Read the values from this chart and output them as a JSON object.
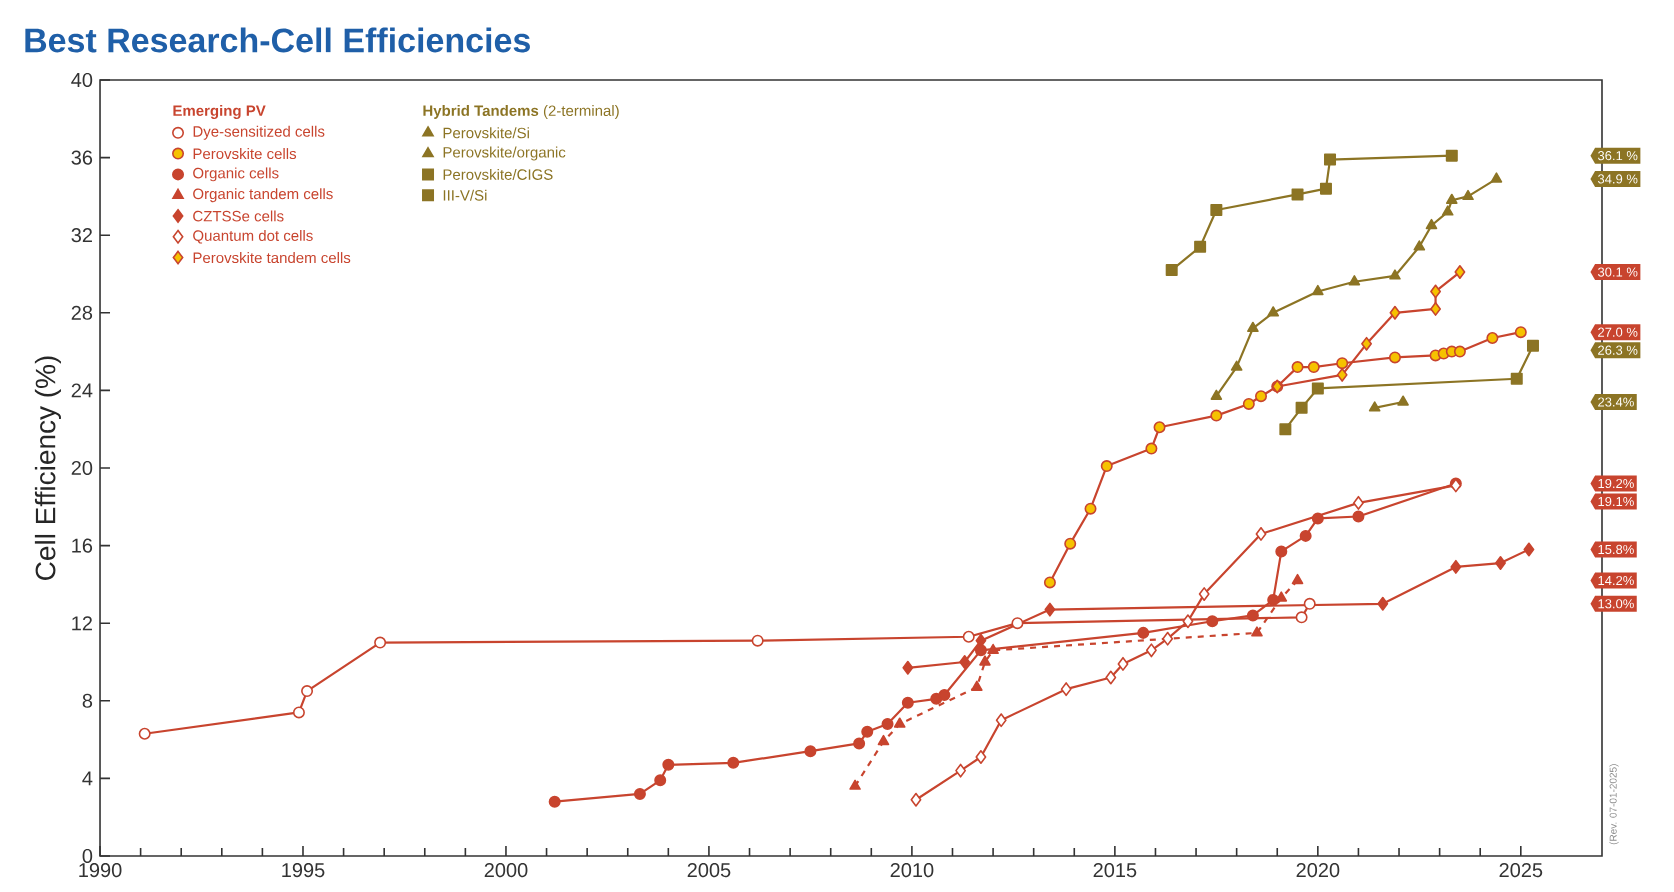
{
  "chart_data": {
    "type": "line",
    "title": "Best Research-Cell Efficiencies",
    "ylabel": "Cell Efficiency (%)",
    "xlim": [
      1990,
      2027
    ],
    "ylim": [
      0,
      40
    ],
    "xticks": [
      1990,
      1995,
      2000,
      2005,
      2010,
      2015,
      2020,
      2025
    ],
    "yticks": [
      0,
      4,
      8,
      12,
      16,
      20,
      24,
      28,
      32,
      36,
      40
    ],
    "legend": "top left",
    "series": [
      {
        "name": "Dye-sensitized cells",
        "color": "#c8442e",
        "marker": "circle",
        "colors": [
          "#ffffff",
          "#ffffff",
          "#ffffff",
          "#ffffff",
          "#ffffff",
          "#ffffff",
          "#ffffff",
          "#ffffff",
          "#ffffff"
        ],
        "x": [
          1991.1,
          1994.9,
          1995.1,
          1996.9,
          2006.2,
          2011.4,
          2012.6,
          2019.6,
          2019.8
        ],
        "values": [
          6.3,
          7.4,
          8.5,
          11.0,
          11.1,
          11.3,
          12.0,
          12.3,
          13.0
        ]
      },
      {
        "name": "Perovskite cells",
        "color": "#c8442e",
        "marker": "circle",
        "colors": [
          "#f6c200",
          "#f6c200",
          "#f6c200",
          "#f6c200",
          "#f6c200",
          "#f6c200",
          "#f6c200",
          "#f6c200",
          "#f6c200",
          "#f6c200",
          "#f6c200",
          "#f6c200",
          "#f6c200",
          "#f6c200",
          "#f6c200",
          "#f6c200",
          "#f6c200",
          "#f6c200",
          "#f6c200",
          "#f6c200"
        ],
        "x": [
          2013.4,
          2013.9,
          2014.4,
          2014.8,
          2015.9,
          2016.1,
          2017.5,
          2018.3,
          2018.6,
          2019.0,
          2019.5,
          2019.9,
          2020.6,
          2021.9,
          2022.9,
          2023.1,
          2023.3,
          2023.5,
          2024.3,
          2025.0
        ],
        "values": [
          14.1,
          16.1,
          17.9,
          20.1,
          21.0,
          22.1,
          22.7,
          23.3,
          23.7,
          24.2,
          25.2,
          25.2,
          25.4,
          25.7,
          25.8,
          25.9,
          26.0,
          26.0,
          26.7,
          27.0
        ]
      },
      {
        "name": "Organic cells",
        "color": "#c8442e",
        "marker": "circle",
        "x": [
          2001.2,
          2003.3,
          2003.8,
          2004.0,
          2005.6,
          2007.5,
          2008.7,
          2008.9,
          2009.4,
          2009.9,
          2010.6,
          2010.8,
          2011.7,
          2015.7,
          2017.4,
          2018.4,
          2018.9,
          2019.1,
          2019.7,
          2020.0,
          2021.0,
          2023.4
        ],
        "values": [
          2.8,
          3.2,
          3.9,
          4.7,
          4.8,
          5.4,
          5.8,
          6.4,
          6.8,
          7.9,
          8.1,
          8.3,
          10.6,
          11.5,
          12.1,
          12.4,
          13.2,
          15.7,
          16.5,
          17.4,
          17.5,
          19.2
        ]
      },
      {
        "name": "Organic tandem cells",
        "color": "#c8442e",
        "marker": "triangle",
        "line_style": "dashed",
        "x": [
          2008.6,
          2009.3,
          2009.7,
          2011.6,
          2011.8,
          2012.0,
          2018.5,
          2019.1,
          2019.5
        ],
        "values": [
          3.6,
          5.9,
          6.8,
          8.7,
          10.0,
          10.6,
          11.5,
          13.3,
          14.2
        ]
      },
      {
        "name": "CZTSSe cells",
        "color": "#c8442e",
        "marker": "diamond",
        "x": [
          2009.9,
          2011.3,
          2011.7,
          2013.4,
          2021.6,
          2023.4,
          2024.5,
          2025.2
        ],
        "values": [
          9.7,
          10.0,
          11.1,
          12.7,
          13.0,
          14.9,
          15.1,
          15.8
        ]
      },
      {
        "name": "Quantum dot cells",
        "color": "#c8442e",
        "marker": "diamond",
        "colors": [
          "#ffffff",
          "#ffffff",
          "#ffffff",
          "#ffffff",
          "#ffffff",
          "#ffffff",
          "#ffffff",
          "#ffffff",
          "#ffffff",
          "#ffffff",
          "#ffffff",
          "#ffffff",
          "#ffffff",
          "#ffffff"
        ],
        "x": [
          2010.1,
          2011.2,
          2011.7,
          2012.2,
          2013.8,
          2014.9,
          2015.2,
          2015.9,
          2016.3,
          2016.8,
          2017.2,
          2018.6,
          2021.0,
          2023.4
        ],
        "values": [
          2.9,
          4.4,
          5.1,
          7.0,
          8.6,
          9.2,
          9.9,
          10.6,
          11.2,
          12.1,
          13.5,
          16.6,
          18.2,
          19.1
        ]
      },
      {
        "name": "Perovskite tandem cells",
        "color": "#c8442e",
        "marker": "diamond",
        "colors": [
          "#f6c200",
          "#f6c200",
          "#f6c200",
          "#f6c200",
          "#f6c200",
          "#f6c200",
          "#f6c200"
        ],
        "x": [
          2019.0,
          2020.6,
          2021.2,
          2021.9,
          2022.9,
          2022.9,
          2023.5
        ],
        "values": [
          24.2,
          24.8,
          26.4,
          28.0,
          28.2,
          29.1,
          30.1
        ]
      },
      {
        "name": "Perovskite/Si",
        "color": "#8c7424",
        "marker": "triangle",
        "x": [
          2017.5,
          2018.0,
          2018.4,
          2018.9,
          2020.0,
          2020.9,
          2021.9,
          2022.5,
          2022.8,
          2023.2,
          2023.3,
          2023.7,
          2024.4
        ],
        "values": [
          23.7,
          25.2,
          27.2,
          28.0,
          29.1,
          29.6,
          29.9,
          31.4,
          32.5,
          33.2,
          33.8,
          34.0,
          34.9
        ]
      },
      {
        "name": "Perovskite/organic",
        "color": "#8c7424",
        "marker": "triangle",
        "x": [
          2021.4,
          2022.1
        ],
        "values": [
          23.1,
          23.4
        ]
      },
      {
        "name": "Perovskite/CIGS",
        "color": "#8c7424",
        "marker": "square",
        "x": [
          2019.2,
          2019.6,
          2020.0,
          2024.9,
          2025.3
        ],
        "values": [
          22.0,
          23.1,
          24.1,
          24.6,
          26.3
        ]
      },
      {
        "name": "III-V/Si",
        "color": "#8c7424",
        "marker": "square",
        "x": [
          2016.4,
          2017.1,
          2017.5,
          2019.5,
          2020.2,
          2020.3,
          2023.3
        ],
        "values": [
          30.2,
          31.4,
          33.3,
          34.1,
          34.4,
          35.9,
          36.1
        ]
      }
    ],
    "annotations": [
      {
        "text": "**Emerging PV**"
      },
      {
        "text": "**Hybrid Tandems** (2-terminal)"
      },
      "(Rev. 07-01-2025)",
      {
        "text": "36.1 %",
        "y": 36.1
      },
      {
        "text": "34.9 %",
        "y": 34.9
      },
      {
        "text": "30.1 %",
        "y": 30.1
      },
      {
        "text": "27.0 %",
        "y": 27.0
      },
      "26.3 %",
      {
        "text": "23.4%",
        "y": 23.4
      },
      {
        "text": "19.2%",
        "y": 19.2
      },
      "19.1%",
      {
        "text": "15.8%",
        "y": 15.8
      },
      {
        "text": "14.2%",
        "y": 14.2
      },
      {
        "text": "13.0%",
        "y": 13.0
      }
    ]
  }
}
